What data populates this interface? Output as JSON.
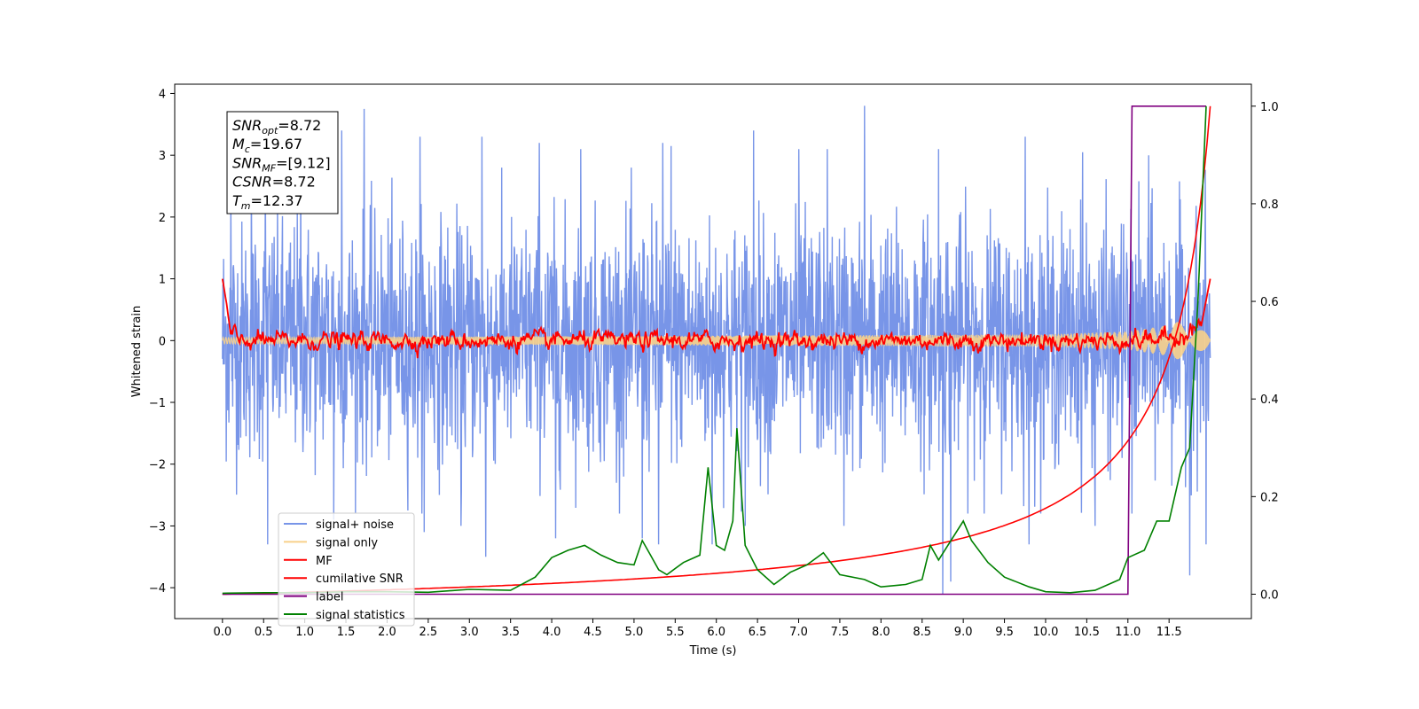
{
  "chart_data": {
    "type": "line",
    "xlabel": "Time (s)",
    "ylabel_left": "Whitened strain",
    "ylabel_right": "",
    "xlim": [
      -0.58,
      12.5
    ],
    "ylim_left": [
      -4.5,
      4.15
    ],
    "ylim_right": [
      -0.05,
      1.045
    ],
    "x_ticks": [
      "0.0",
      "0.5",
      "1.0",
      "1.5",
      "2.0",
      "2.5",
      "3.0",
      "3.5",
      "4.0",
      "4.5",
      "5.0",
      "5.5",
      "6.0",
      "6.5",
      "7.0",
      "7.5",
      "8.0",
      "8.5",
      "9.0",
      "9.5",
      "10.0",
      "10.5",
      "11.0",
      "11.5"
    ],
    "y_ticks_left": [
      "−4",
      "−3",
      "−2",
      "−1",
      "0",
      "1",
      "2",
      "3",
      "4"
    ],
    "y_ticks_right": [
      "0.0",
      "0.2",
      "0.4",
      "0.6",
      "0.8",
      "1.0"
    ],
    "grid": false,
    "annotation": {
      "lines": [
        {
          "sym": "SNR",
          "sub": "opt",
          "value": "=8.72"
        },
        {
          "sym": "M",
          "sub": "c",
          "value": "=19.67"
        },
        {
          "sym": "SNR",
          "sub": "MF",
          "value": "=[9.12]"
        },
        {
          "sym": "CSNR",
          "sub": "",
          "value": "=8.72"
        },
        {
          "sym": "T",
          "sub": "m",
          "value": "=12.37"
        }
      ]
    },
    "legend": {
      "position": "lower-left",
      "entries": [
        {
          "label": "signal+ noise",
          "color": "#7895e8"
        },
        {
          "label": "signal only",
          "color": "#f8d08a"
        },
        {
          "label": "MF",
          "color": "#ff0000"
        },
        {
          "label": "cumilative SNR",
          "color": "#ff0000"
        },
        {
          "label": "label",
          "color": "#800080"
        },
        {
          "label": "signal statistics",
          "color": "#008000"
        }
      ]
    },
    "series": [
      {
        "name": "signal+ noise",
        "axis": "left",
        "color": "#7895e8",
        "description_range": [
          -2.2,
          2.2
        ],
        "x_range": [
          0,
          12.0
        ],
        "peaks": [
          [
            0.1,
            2.4
          ],
          [
            0.35,
            2.6
          ],
          [
            0.52,
            2.9
          ],
          [
            0.95,
            3.0
          ],
          [
            1.45,
            3.4
          ],
          [
            1.72,
            3.75
          ],
          [
            2.4,
            3.3
          ],
          [
            3.15,
            3.3
          ],
          [
            3.85,
            3.2
          ],
          [
            4.35,
            3.1
          ],
          [
            5.35,
            3.2
          ],
          [
            5.45,
            3.15
          ],
          [
            6.45,
            3.4
          ],
          [
            7.0,
            3.1
          ],
          [
            7.35,
            3.1
          ],
          [
            7.8,
            3.8
          ],
          [
            8.7,
            3.1
          ],
          [
            9.75,
            3.3
          ],
          [
            10.45,
            3.05
          ],
          [
            11.25,
            3.0
          ],
          [
            11.95,
            3.0
          ]
        ],
        "troughs": [
          [
            0.55,
            -3.3
          ],
          [
            1.35,
            -2.9
          ],
          [
            2.45,
            -3.1
          ],
          [
            2.9,
            -3.0
          ],
          [
            3.2,
            -3.5
          ],
          [
            4.05,
            -3.2
          ],
          [
            5.1,
            -3.2
          ],
          [
            5.3,
            -3.3
          ],
          [
            5.95,
            -3.3
          ],
          [
            6.35,
            -3.0
          ],
          [
            7.55,
            -3.0
          ],
          [
            8.75,
            -4.1
          ],
          [
            8.85,
            -3.9
          ],
          [
            9.8,
            -3.3
          ],
          [
            10.6,
            -3.0
          ],
          [
            11.05,
            -2.8
          ],
          [
            11.75,
            -3.8
          ],
          [
            11.95,
            -3.3
          ]
        ]
      },
      {
        "name": "signal only",
        "axis": "left",
        "color": "#f8d08a",
        "description_amplitude": [
          [
            0,
            0.05
          ],
          [
            10.0,
            0.1
          ],
          [
            11.0,
            0.15
          ],
          [
            11.5,
            0.25
          ],
          [
            12.0,
            0.5
          ]
        ]
      },
      {
        "name": "MF",
        "axis": "left",
        "color": "#ff0000",
        "points": [
          [
            0.0,
            1.0
          ],
          [
            0.05,
            0.6
          ],
          [
            0.1,
            0.1
          ],
          [
            0.2,
            0.0
          ],
          [
            0.5,
            0.0
          ],
          [
            1.0,
            0.0
          ],
          [
            2.0,
            0.0
          ],
          [
            3.0,
            0.0
          ],
          [
            4.0,
            0.0
          ],
          [
            5.0,
            0.0
          ],
          [
            6.0,
            0.0
          ],
          [
            7.0,
            0.0
          ],
          [
            8.0,
            0.0
          ],
          [
            9.0,
            0.0
          ],
          [
            10.0,
            0.0
          ],
          [
            11.0,
            0.0
          ],
          [
            11.6,
            0.05
          ],
          [
            11.9,
            0.3
          ],
          [
            12.0,
            1.0
          ]
        ]
      },
      {
        "name": "cumilative SNR",
        "axis": "right",
        "color": "#ff0000",
        "points": [
          [
            0.0,
            0.0
          ],
          [
            0.5,
            0.015
          ],
          [
            1.0,
            0.03
          ],
          [
            2.0,
            0.06
          ],
          [
            3.0,
            0.09
          ],
          [
            4.0,
            0.12
          ],
          [
            5.0,
            0.15
          ],
          [
            6.0,
            0.185
          ],
          [
            7.0,
            0.225
          ],
          [
            8.0,
            0.275
          ],
          [
            9.0,
            0.33
          ],
          [
            10.0,
            0.41
          ],
          [
            10.5,
            0.46
          ],
          [
            11.0,
            0.54
          ],
          [
            11.5,
            0.68
          ],
          [
            11.8,
            0.82
          ],
          [
            12.0,
            1.0
          ]
        ]
      },
      {
        "name": "label",
        "axis": "right",
        "color": "#800080",
        "points": [
          [
            0.0,
            0.0
          ],
          [
            11.0,
            0.0
          ],
          [
            11.05,
            1.0
          ],
          [
            11.95,
            1.0
          ]
        ]
      },
      {
        "name": "signal statistics",
        "axis": "right",
        "color": "#008000",
        "points": [
          [
            0.0,
            0.002
          ],
          [
            0.5,
            0.003
          ],
          [
            1.0,
            0.003
          ],
          [
            1.5,
            0.005
          ],
          [
            2.0,
            0.005
          ],
          [
            2.5,
            0.004
          ],
          [
            3.0,
            0.01
          ],
          [
            3.5,
            0.008
          ],
          [
            3.8,
            0.035
          ],
          [
            4.0,
            0.075
          ],
          [
            4.2,
            0.09
          ],
          [
            4.4,
            0.1
          ],
          [
            4.6,
            0.08
          ],
          [
            4.8,
            0.065
          ],
          [
            5.0,
            0.06
          ],
          [
            5.1,
            0.11
          ],
          [
            5.2,
            0.08
          ],
          [
            5.3,
            0.05
          ],
          [
            5.4,
            0.04
          ],
          [
            5.6,
            0.065
          ],
          [
            5.8,
            0.08
          ],
          [
            5.9,
            0.26
          ],
          [
            6.0,
            0.1
          ],
          [
            6.1,
            0.09
          ],
          [
            6.2,
            0.15
          ],
          [
            6.25,
            0.34
          ],
          [
            6.35,
            0.1
          ],
          [
            6.5,
            0.05
          ],
          [
            6.7,
            0.02
          ],
          [
            6.9,
            0.045
          ],
          [
            7.1,
            0.06
          ],
          [
            7.3,
            0.085
          ],
          [
            7.5,
            0.04
          ],
          [
            7.8,
            0.03
          ],
          [
            8.0,
            0.015
          ],
          [
            8.3,
            0.02
          ],
          [
            8.5,
            0.03
          ],
          [
            8.6,
            0.1
          ],
          [
            8.7,
            0.07
          ],
          [
            9.0,
            0.15
          ],
          [
            9.1,
            0.11
          ],
          [
            9.3,
            0.065
          ],
          [
            9.5,
            0.035
          ],
          [
            9.8,
            0.015
          ],
          [
            10.0,
            0.005
          ],
          [
            10.3,
            0.003
          ],
          [
            10.6,
            0.008
          ],
          [
            10.9,
            0.03
          ],
          [
            11.0,
            0.075
          ],
          [
            11.2,
            0.09
          ],
          [
            11.35,
            0.15
          ],
          [
            11.5,
            0.15
          ],
          [
            11.65,
            0.26
          ],
          [
            11.75,
            0.3
          ],
          [
            11.85,
            0.6
          ],
          [
            11.95,
            1.0
          ]
        ]
      }
    ]
  }
}
